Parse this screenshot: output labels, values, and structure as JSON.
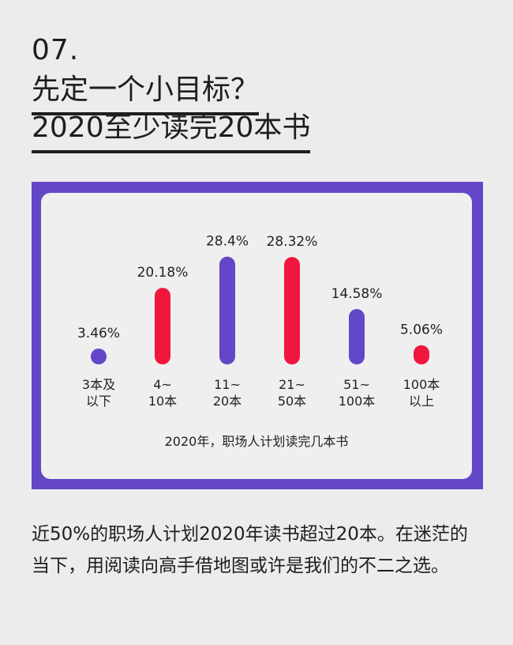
{
  "heading": {
    "number": "07.",
    "line1": "先定一个小目标？",
    "line2": "2020至少读完20本书"
  },
  "chart_data": {
    "type": "bar",
    "categories": [
      "3本及以下",
      "4~10本",
      "11~20本",
      "21~50本",
      "51~100本",
      "100本以上"
    ],
    "category_lines": [
      [
        "3本及",
        "以下"
      ],
      [
        "4~",
        "10本"
      ],
      [
        "11~",
        "20本"
      ],
      [
        "21~",
        "50本"
      ],
      [
        "51~",
        "100本"
      ],
      [
        "100本",
        "以上"
      ]
    ],
    "values": [
      3.46,
      20.18,
      28.4,
      28.32,
      14.58,
      5.06
    ],
    "value_labels": [
      "3.46%",
      "20.18%",
      "28.4%",
      "28.32%",
      "14.58%",
      "5.06%"
    ],
    "bar_colors": [
      "#6446c8",
      "#f0173e",
      "#6446c8",
      "#f0173e",
      "#6446c8",
      "#f0173e"
    ],
    "caption": "2020年，职场人计划读完几本书",
    "unit": "%"
  },
  "body": {
    "text": "近50%的职场人计划2020年读书超过20本。在迷茫的当下，用阅读向高手借地图或许是我们的不二之选。"
  },
  "colors": {
    "frame": "#6446c8",
    "accent_red": "#f0173e",
    "background": "#ececec"
  }
}
